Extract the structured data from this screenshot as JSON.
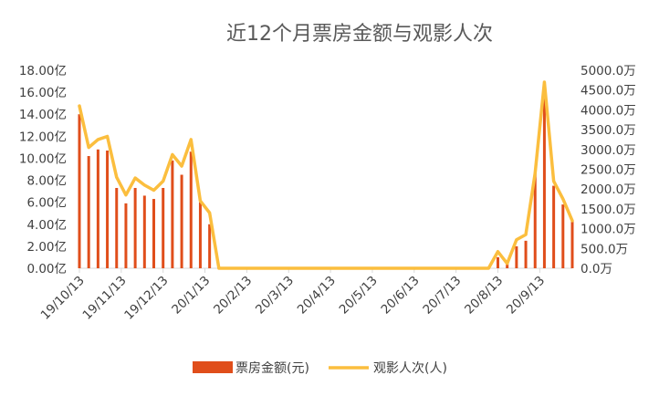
{
  "chart_data": {
    "type": "bar",
    "title": "近12个月票房金额与观影人次",
    "colors": {
      "bar": "#E04E1B",
      "line": "#FBBE3E",
      "axis": "#D9D9D9"
    },
    "y_left": {
      "ylim": [
        0,
        18
      ],
      "ticks": [
        0,
        2,
        4,
        6,
        8,
        10,
        12,
        14,
        16,
        18
      ],
      "tick_labels": [
        "0.00亿",
        "2.00亿",
        "4.00亿",
        "6.00亿",
        "8.00亿",
        "10.00亿",
        "12.00亿",
        "14.00亿",
        "16.00亿",
        "18.00亿"
      ]
    },
    "y_right": {
      "ylim": [
        0,
        5000
      ],
      "ticks": [
        0,
        500,
        1000,
        1500,
        2000,
        2500,
        3000,
        3500,
        4000,
        4500,
        5000
      ],
      "tick_labels": [
        "0.0万",
        "500.0万",
        "1000.0万",
        "1500.0万",
        "2000.0万",
        "2500.0万",
        "3000.0万",
        "3500.0万",
        "4000.0万",
        "4500.0万",
        "5000.0万"
      ]
    },
    "x_ticks": [
      {
        "index": 0,
        "label": "19/10/13"
      },
      {
        "index": 4.5,
        "label": "19/11/13"
      },
      {
        "index": 9,
        "label": "19/12/13"
      },
      {
        "index": 13.5,
        "label": "20/1/13"
      },
      {
        "index": 18,
        "label": "20/2/13"
      },
      {
        "index": 22.5,
        "label": "20/3/13"
      },
      {
        "index": 27,
        "label": "20/4/13"
      },
      {
        "index": 31.5,
        "label": "20/5/13"
      },
      {
        "index": 36,
        "label": "20/6/13"
      },
      {
        "index": 40.5,
        "label": "20/7/13"
      },
      {
        "index": 45,
        "label": "20/8/13"
      },
      {
        "index": 49.5,
        "label": "20/9/13"
      }
    ],
    "series": [
      {
        "name": "票房金额(元)",
        "kind": "bar",
        "axis": "left",
        "values": [
          14.0,
          10.2,
          10.8,
          10.7,
          7.3,
          5.9,
          7.3,
          6.6,
          6.3,
          7.3,
          9.8,
          8.5,
          10.6,
          6.0,
          4.0,
          0,
          0,
          0,
          0,
          0,
          0,
          0,
          0,
          0,
          0,
          0,
          0,
          0,
          0,
          0,
          0,
          0,
          0,
          0,
          0,
          0,
          0,
          0,
          0,
          0,
          0,
          0,
          0,
          0,
          0,
          1.0,
          0.4,
          2.0,
          2.5,
          8.7,
          15.8,
          7.5,
          5.8,
          4.3
        ]
      },
      {
        "name": "观影人次(人)",
        "kind": "line",
        "axis": "right",
        "values": [
          4100,
          3050,
          3250,
          3330,
          2300,
          1850,
          2280,
          2100,
          1970,
          2200,
          2870,
          2580,
          3250,
          1700,
          1400,
          0,
          0,
          0,
          0,
          0,
          0,
          0,
          0,
          0,
          0,
          0,
          0,
          0,
          0,
          0,
          0,
          0,
          0,
          0,
          0,
          0,
          0,
          0,
          0,
          0,
          0,
          0,
          0,
          0,
          0,
          420,
          120,
          720,
          850,
          2400,
          4700,
          2200,
          1750,
          1200
        ]
      }
    ],
    "legend": {
      "position": "bottom",
      "entries": [
        "票房金额(元)",
        "观影人次(人)"
      ]
    }
  }
}
